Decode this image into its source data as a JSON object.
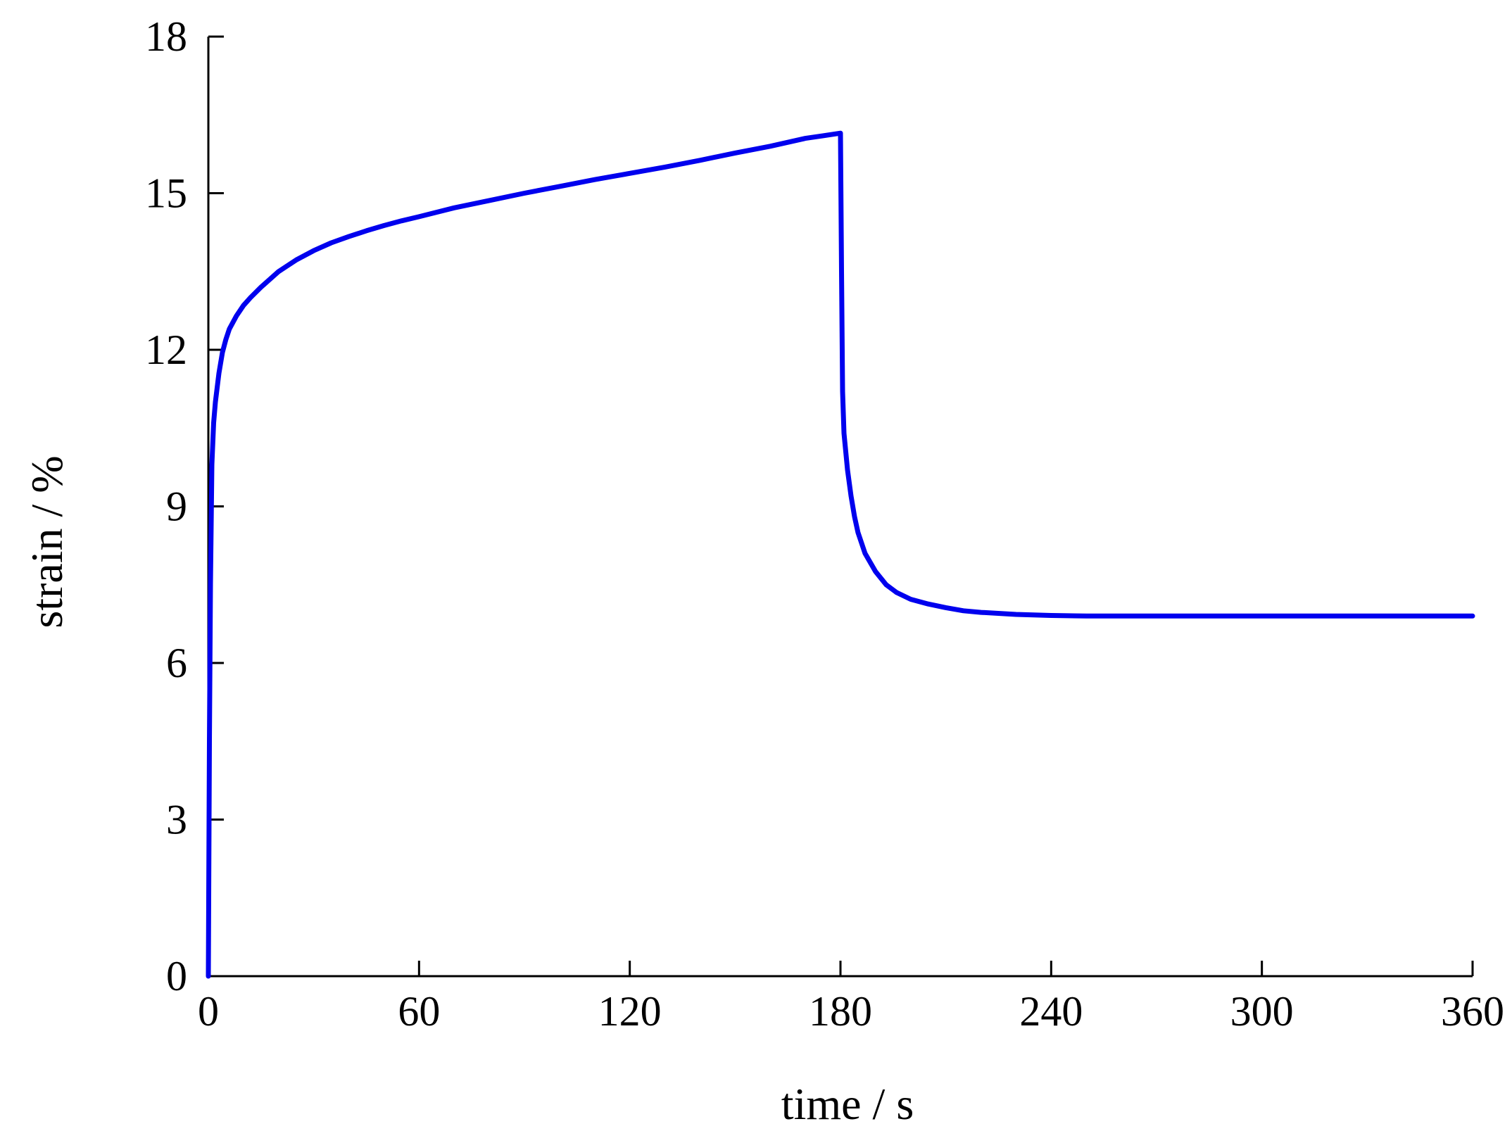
{
  "colors": {
    "series": "#0000ee",
    "axis": "#000000",
    "background": "#ffffff"
  },
  "chart_data": {
    "type": "line",
    "title": "",
    "xlabel": "time / s",
    "ylabel": "strain / %",
    "xlim": [
      0,
      360
    ],
    "ylim": [
      0,
      18
    ],
    "xticks": [
      0,
      60,
      120,
      180,
      240,
      300,
      360
    ],
    "yticks": [
      0,
      3,
      6,
      9,
      12,
      15,
      18
    ],
    "grid": false,
    "legend": "none",
    "series": [
      {
        "x": [
          0,
          0.3,
          0.6,
          1,
          1.5,
          2,
          3,
          4,
          5,
          6,
          8,
          10,
          12,
          15,
          20,
          25,
          30,
          35,
          40,
          45,
          50,
          55,
          60,
          70,
          80,
          90,
          100,
          110,
          120,
          130,
          140,
          150,
          160,
          170,
          175,
          180,
          180.3,
          180.6,
          181,
          182,
          183,
          184,
          185,
          187,
          190,
          193,
          196,
          200,
          205,
          210,
          215,
          220,
          230,
          240,
          250,
          260,
          280,
          300,
          320,
          340,
          360
        ],
        "y": [
          0,
          4.5,
          7.5,
          9.8,
          10.6,
          11.0,
          11.55,
          11.95,
          12.2,
          12.4,
          12.65,
          12.85,
          13.0,
          13.2,
          13.5,
          13.72,
          13.9,
          14.05,
          14.17,
          14.28,
          14.38,
          14.47,
          14.55,
          14.72,
          14.86,
          15.0,
          15.13,
          15.26,
          15.38,
          15.5,
          15.63,
          15.77,
          15.9,
          16.05,
          16.1,
          16.15,
          13.5,
          11.2,
          10.4,
          9.7,
          9.2,
          8.8,
          8.5,
          8.1,
          7.75,
          7.5,
          7.35,
          7.22,
          7.13,
          7.06,
          7.0,
          6.97,
          6.93,
          6.91,
          6.9,
          6.9,
          6.9,
          6.9,
          6.9,
          6.9,
          6.9
        ]
      }
    ]
  }
}
